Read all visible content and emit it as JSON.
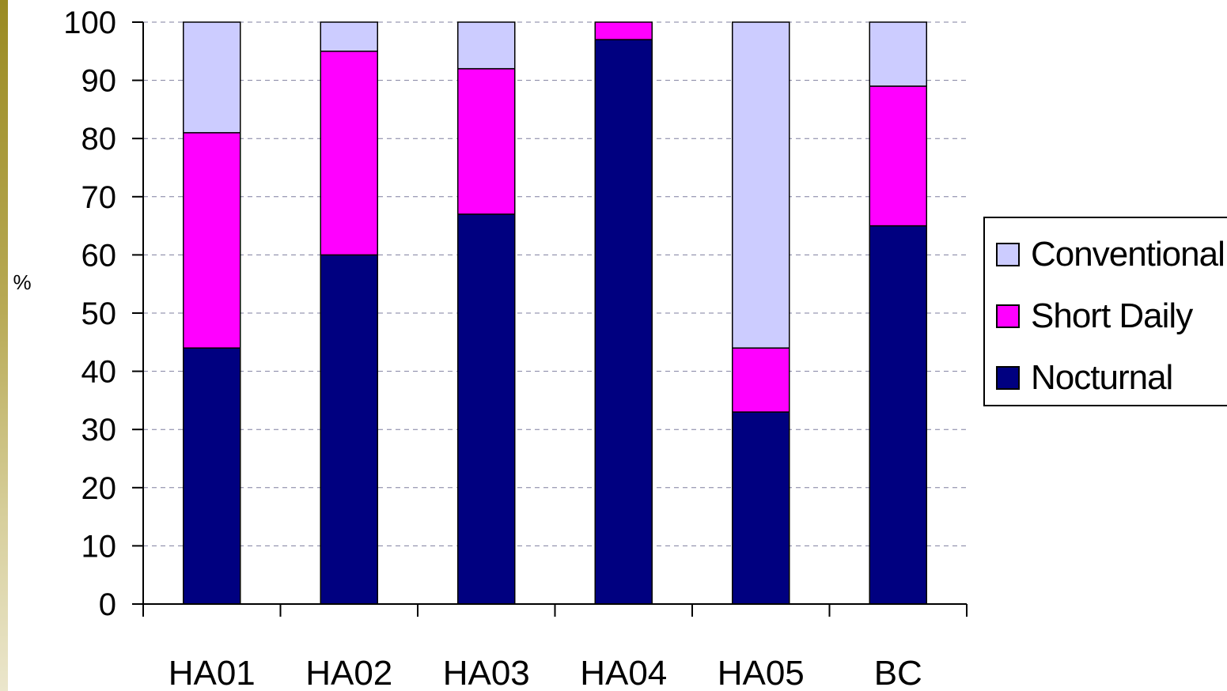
{
  "chart_data": {
    "type": "bar",
    "stacked": true,
    "categories": [
      "HA01",
      "HA02",
      "HA03",
      "HA04",
      "HA05",
      "BC"
    ],
    "series": [
      {
        "name": "Nocturnal",
        "color": "#000080",
        "values": [
          44,
          60,
          67,
          97,
          33,
          65
        ]
      },
      {
        "name": "Short Daily",
        "color": "#ff00ff",
        "values": [
          37,
          35,
          25,
          3,
          11,
          24
        ]
      },
      {
        "name": "Conventional",
        "color": "#ccccff",
        "values": [
          19,
          5,
          8,
          0,
          56,
          11
        ]
      }
    ],
    "title": "",
    "xlabel": "",
    "ylabel": "%",
    "ylim": [
      0,
      100
    ],
    "yticks": [
      "0",
      "10",
      "20",
      "30",
      "40",
      "50",
      "60",
      "70",
      "80",
      "90",
      "100"
    ],
    "grid": true,
    "legend_position": "right",
    "legend": [
      "Conventional",
      "Short Daily",
      "Nocturnal"
    ]
  }
}
